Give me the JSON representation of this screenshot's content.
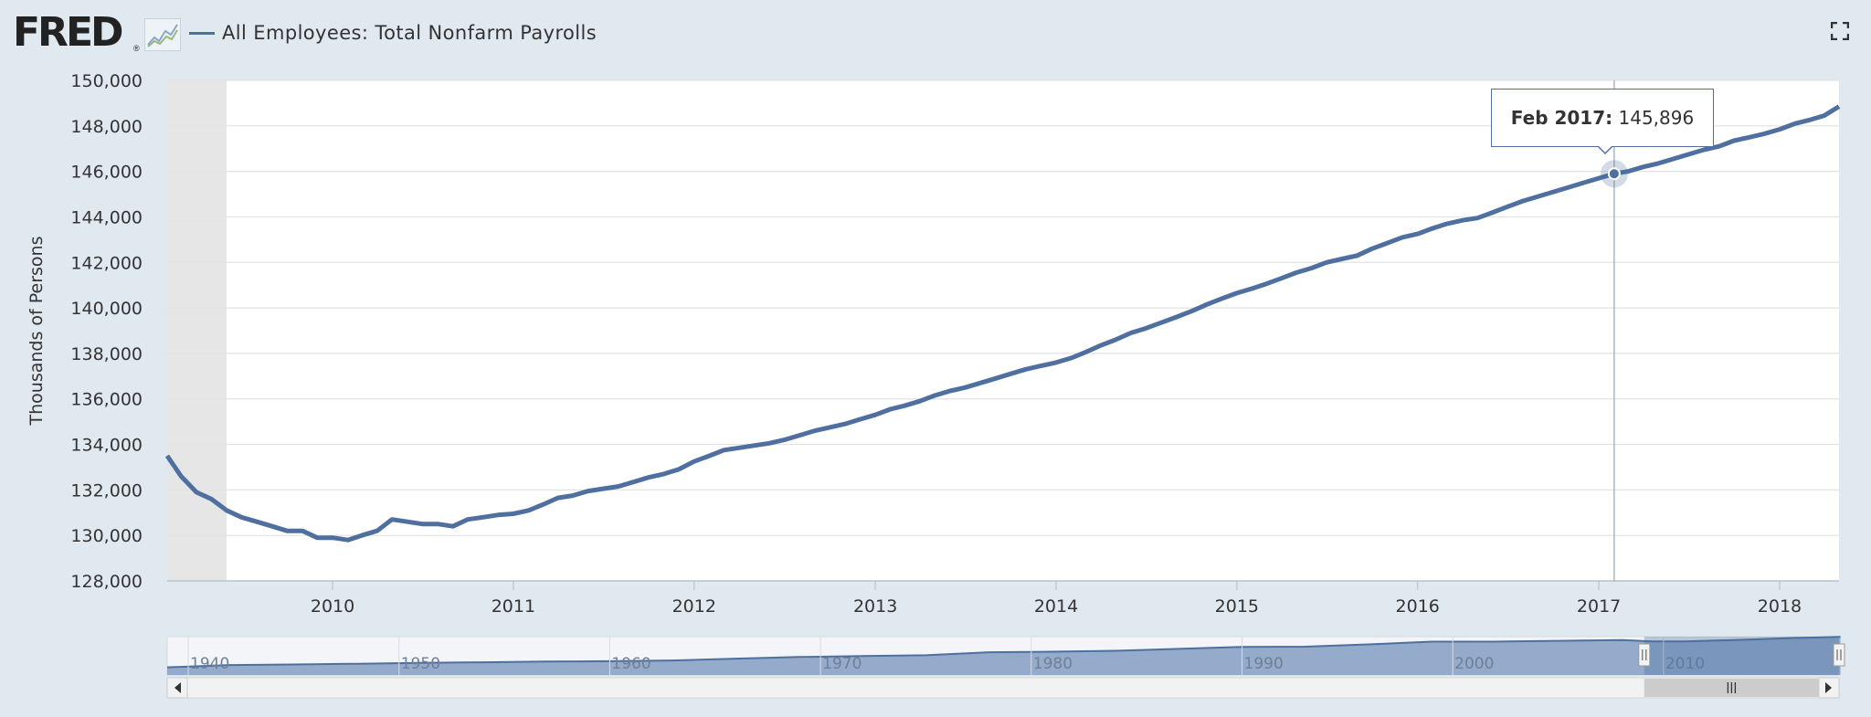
{
  "header": {
    "logo": "FRED",
    "logo_mark": "®",
    "graph_icon": "line-graph-icon",
    "fullscreen_icon": "fullscreen-icon"
  },
  "chart_data": {
    "type": "line",
    "title": "All Employees: Total Nonfarm Payrolls",
    "ylabel": "Thousands of Persons",
    "xlabel": "",
    "ylim": [
      128000,
      150000
    ],
    "xlim": [
      "2009-02-01",
      "2018-05-01"
    ],
    "y_ticks": [
      "128,000",
      "130,000",
      "132,000",
      "134,000",
      "136,000",
      "138,000",
      "140,000",
      "142,000",
      "144,000",
      "146,000",
      "148,000",
      "150,000"
    ],
    "y_tick_values": [
      128000,
      130000,
      132000,
      134000,
      136000,
      138000,
      140000,
      142000,
      144000,
      146000,
      148000,
      150000
    ],
    "x_ticks": [
      "2010",
      "2011",
      "2012",
      "2013",
      "2014",
      "2015",
      "2016",
      "2017",
      "2018"
    ],
    "grid": true,
    "legend": "top-left",
    "color": "#4e6f9f",
    "recession_shading": {
      "start": "2009-02-01",
      "end": "2009-06-01"
    },
    "series": [
      {
        "name": "All Employees: Total Nonfarm Payrolls",
        "x": [
          "2009-02-01",
          "2009-03-01",
          "2009-04-01",
          "2009-05-01",
          "2009-06-01",
          "2009-07-01",
          "2009-08-01",
          "2009-09-01",
          "2009-10-01",
          "2009-11-01",
          "2009-12-01",
          "2010-01-01",
          "2010-02-01",
          "2010-03-01",
          "2010-04-01",
          "2010-05-01",
          "2010-06-01",
          "2010-07-01",
          "2010-08-01",
          "2010-09-01",
          "2010-10-01",
          "2010-11-01",
          "2010-12-01",
          "2011-01-01",
          "2011-02-01",
          "2011-03-01",
          "2011-04-01",
          "2011-05-01",
          "2011-06-01",
          "2011-07-01",
          "2011-08-01",
          "2011-09-01",
          "2011-10-01",
          "2011-11-01",
          "2011-12-01",
          "2012-01-01",
          "2012-02-01",
          "2012-03-01",
          "2012-04-01",
          "2012-05-01",
          "2012-06-01",
          "2012-07-01",
          "2012-08-01",
          "2012-09-01",
          "2012-10-01",
          "2012-11-01",
          "2012-12-01",
          "2013-01-01",
          "2013-02-01",
          "2013-03-01",
          "2013-04-01",
          "2013-05-01",
          "2013-06-01",
          "2013-07-01",
          "2013-08-01",
          "2013-09-01",
          "2013-10-01",
          "2013-11-01",
          "2013-12-01",
          "2014-01-01",
          "2014-02-01",
          "2014-03-01",
          "2014-04-01",
          "2014-05-01",
          "2014-06-01",
          "2014-07-01",
          "2014-08-01",
          "2014-09-01",
          "2014-10-01",
          "2014-11-01",
          "2014-12-01",
          "2015-01-01",
          "2015-02-01",
          "2015-03-01",
          "2015-04-01",
          "2015-05-01",
          "2015-06-01",
          "2015-07-01",
          "2015-08-01",
          "2015-09-01",
          "2015-10-01",
          "2015-11-01",
          "2015-12-01",
          "2016-01-01",
          "2016-02-01",
          "2016-03-01",
          "2016-04-01",
          "2016-05-01",
          "2016-06-01",
          "2016-07-01",
          "2016-08-01",
          "2016-09-01",
          "2016-10-01",
          "2016-11-01",
          "2016-12-01",
          "2017-01-01",
          "2017-02-01",
          "2017-03-01",
          "2017-04-01",
          "2017-05-01",
          "2017-06-01",
          "2017-07-01",
          "2017-08-01",
          "2017-09-01",
          "2017-10-01",
          "2017-11-01",
          "2017-12-01",
          "2018-01-01",
          "2018-02-01",
          "2018-03-01",
          "2018-04-01",
          "2018-05-01"
        ],
        "values": [
          133500,
          132600,
          131900,
          131600,
          131100,
          130800,
          130600,
          130400,
          130200,
          130200,
          129900,
          129900,
          129800,
          130000,
          130200,
          130700,
          130600,
          130500,
          130500,
          130400,
          130700,
          130800,
          130900,
          130950,
          131100,
          131350,
          131650,
          131750,
          131950,
          132050,
          132150,
          132350,
          132550,
          132700,
          132900,
          133250,
          133500,
          133750,
          133850,
          133950,
          134050,
          134200,
          134400,
          134600,
          134750,
          134900,
          135100,
          135300,
          135550,
          135700,
          135900,
          136150,
          136350,
          136500,
          136700,
          136900,
          137100,
          137300,
          137450,
          137600,
          137800,
          138050,
          138350,
          138600,
          138900,
          139100,
          139350,
          139600,
          139850,
          140150,
          140400,
          140650,
          140850,
          141050,
          141300,
          141550,
          141750,
          142000,
          142150,
          142300,
          142600,
          142850,
          143100,
          143250,
          143500,
          143700,
          143850,
          143950,
          144200,
          144450,
          144700,
          144900,
          145100,
          145300,
          145500,
          145700,
          145896,
          146000,
          146200,
          146350,
          146550,
          146750,
          146950,
          147100,
          147350,
          147500,
          147650,
          147850,
          148100,
          148250,
          148450,
          148850
        ]
      }
    ],
    "tooltip": {
      "date": "Feb 2017:",
      "value": "145,896",
      "x": "2017-02-01",
      "y": 145896
    },
    "navigator": {
      "x_ticks": [
        "1940",
        "1950",
        "1960",
        "1970",
        "1980",
        "1990",
        "2000",
        "2010"
      ],
      "range": [
        "1939-01-01",
        "2018-05-01"
      ],
      "selected": [
        "2009-02-01",
        "2018-05-01"
      ],
      "series_x": [
        1939,
        1942,
        1945,
        1948,
        1951,
        1954,
        1957,
        1960,
        1963,
        1966,
        1969,
        1972,
        1975,
        1978,
        1981,
        1984,
        1987,
        1990,
        1993,
        1996,
        1999,
        2002,
        2005,
        2008,
        2009.5,
        2011,
        2014,
        2016,
        2018.4
      ],
      "series_values": [
        30000,
        39000,
        41000,
        44000,
        47000,
        49500,
        52500,
        54000,
        56700,
        63900,
        70400,
        73800,
        77100,
        88800,
        91200,
        94500,
        102000,
        109500,
        110800,
        119600,
        130200,
        130500,
        133700,
        136800,
        130900,
        131300,
        138300,
        144400,
        148800
      ]
    }
  }
}
